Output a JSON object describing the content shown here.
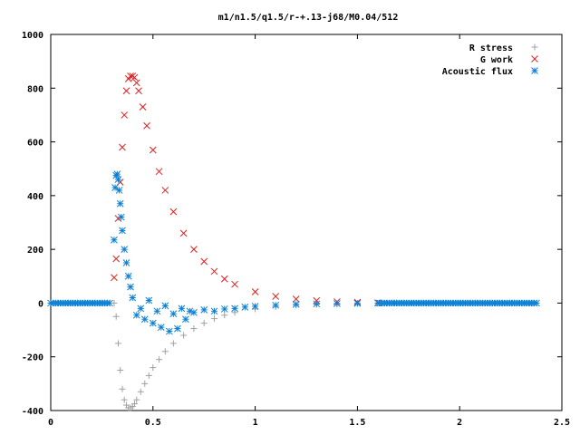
{
  "chart_data": {
    "type": "scatter",
    "title": "m1/n1.5/q1.5/r-+.13-j68/M0.04/512",
    "xlabel": "",
    "ylabel": "",
    "xlim": [
      0,
      2.5
    ],
    "ylim": [
      -400,
      1000
    ],
    "x_ticks": [
      0,
      0.5,
      1,
      1.5,
      2,
      2.5
    ],
    "x_tick_labels": [
      "0",
      "0.5",
      "1",
      "1.5",
      "2",
      "2.5"
    ],
    "y_ticks": [
      -400,
      -200,
      0,
      200,
      400,
      600,
      800,
      1000
    ],
    "y_tick_labels": [
      "-400",
      "-200",
      "0",
      "200",
      "400",
      "600",
      "800",
      "1000"
    ],
    "grid": false,
    "legend_position": "top-right",
    "series": [
      {
        "name": "R stress",
        "marker": "plus",
        "color": "#a0a0a0",
        "x": [
          0.31,
          0.32,
          0.33,
          0.34,
          0.35,
          0.36,
          0.37,
          0.38,
          0.39,
          0.4,
          0.41,
          0.42,
          0.44,
          0.46,
          0.48,
          0.5,
          0.53,
          0.56,
          0.6,
          0.65,
          0.7,
          0.75,
          0.8,
          0.85,
          0.9,
          1.0,
          1.1,
          1.2,
          1.3,
          1.4,
          1.5,
          1.6
        ],
        "y": [
          0,
          -50,
          -150,
          -250,
          -320,
          -360,
          -380,
          -390,
          -390,
          -385,
          -375,
          -360,
          -330,
          -300,
          -270,
          -240,
          -210,
          -180,
          -150,
          -120,
          -95,
          -75,
          -58,
          -45,
          -35,
          -22,
          -13,
          -8,
          -5,
          -3,
          -2,
          -1
        ]
      },
      {
        "name": "G work",
        "marker": "cross",
        "color": "#e02020",
        "x": [
          0.31,
          0.32,
          0.33,
          0.34,
          0.35,
          0.36,
          0.37,
          0.38,
          0.39,
          0.4,
          0.41,
          0.42,
          0.43,
          0.45,
          0.47,
          0.5,
          0.53,
          0.56,
          0.6,
          0.65,
          0.7,
          0.75,
          0.8,
          0.85,
          0.9,
          1.0,
          1.1,
          1.2,
          1.3,
          1.4,
          1.5,
          1.6
        ],
        "y": [
          95,
          165,
          315,
          450,
          580,
          700,
          790,
          835,
          845,
          845,
          840,
          820,
          790,
          730,
          660,
          570,
          490,
          420,
          340,
          260,
          200,
          155,
          118,
          90,
          70,
          42,
          25,
          15,
          9,
          5,
          3,
          1
        ]
      },
      {
        "name": "Acoustic flux",
        "marker": "asterisk",
        "color": "#0a7fd6",
        "x": [
          0.31,
          0.315,
          0.32,
          0.325,
          0.33,
          0.335,
          0.34,
          0.345,
          0.35,
          0.36,
          0.37,
          0.38,
          0.39,
          0.4,
          0.42,
          0.44,
          0.46,
          0.48,
          0.5,
          0.52,
          0.54,
          0.56,
          0.58,
          0.6,
          0.62,
          0.64,
          0.66,
          0.68,
          0.7,
          0.75,
          0.8,
          0.85,
          0.9,
          0.95,
          1.0,
          1.1,
          1.2,
          1.3,
          1.4,
          1.5,
          1.6
        ],
        "y": [
          235,
          430,
          475,
          480,
          460,
          420,
          370,
          320,
          270,
          200,
          150,
          100,
          60,
          20,
          -45,
          -20,
          -60,
          10,
          -75,
          -30,
          -90,
          -10,
          -105,
          -40,
          -95,
          -20,
          -60,
          -30,
          -35,
          -25,
          -30,
          -22,
          -20,
          -15,
          -12,
          -8,
          -5,
          -3,
          -2,
          -1,
          0
        ]
      }
    ]
  }
}
